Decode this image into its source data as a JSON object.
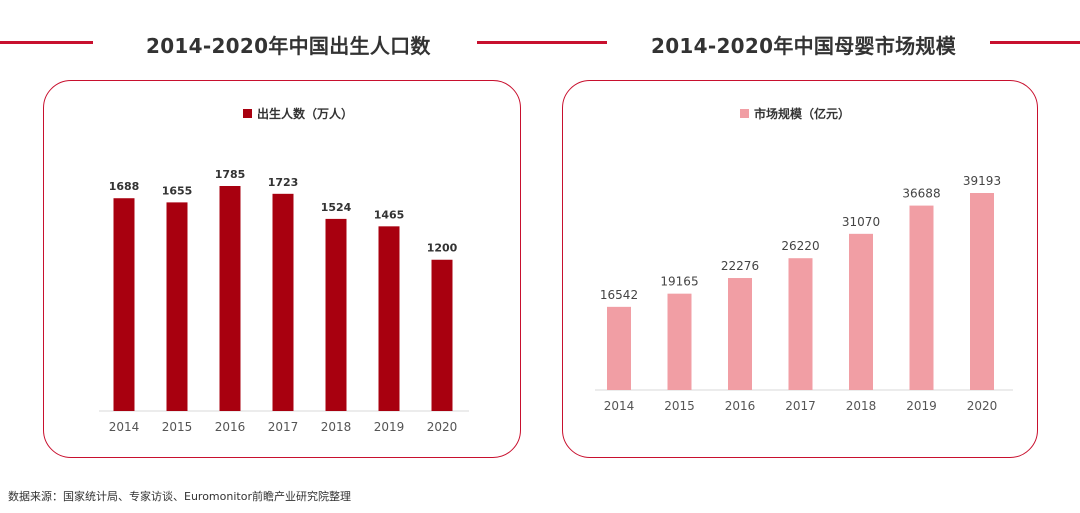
{
  "headers": {
    "left_title": "2014-2020年中国出生人口数",
    "right_title": "2014-2020年中国母婴市场规模"
  },
  "source": "数据来源：国家统计局、专家访谈、Euromonitor前瞻产业研究院整理",
  "colors": {
    "accent": "#c8102e",
    "bar_dark": "#a8000f",
    "bar_pink": "#f19ea4",
    "text": "#333333",
    "axis": "#d9d9d9"
  },
  "chart_data": [
    {
      "type": "bar",
      "title": "2014-2020年中国出生人口数",
      "legend": "出生人数（万人）",
      "categories": [
        "2014",
        "2015",
        "2016",
        "2017",
        "2018",
        "2019",
        "2020"
      ],
      "values": [
        1688,
        1655,
        1785,
        1723,
        1524,
        1465,
        1200
      ],
      "data_labels": [
        "1688",
        "1655",
        "1785",
        "1723",
        "1524",
        "1465",
        "1200"
      ],
      "ylim": [
        0,
        1785
      ],
      "xlabel": "",
      "ylabel": "",
      "grid": false,
      "legend_position": "top-center"
    },
    {
      "type": "bar",
      "title": "2014-2020年中国母婴市场规模",
      "legend": "市场规模（亿元）",
      "categories": [
        "2014",
        "2015",
        "2016",
        "2017",
        "2018",
        "2019",
        "2020"
      ],
      "values": [
        16542,
        19165,
        22276,
        26220,
        31070,
        36688,
        39193
      ],
      "data_labels": [
        "16542",
        "19165",
        "22276",
        "26220",
        "31070",
        "36688",
        "39193"
      ],
      "ylim": [
        0,
        39193
      ],
      "xlabel": "",
      "ylabel": "",
      "grid": false,
      "legend_position": "top-center"
    }
  ]
}
